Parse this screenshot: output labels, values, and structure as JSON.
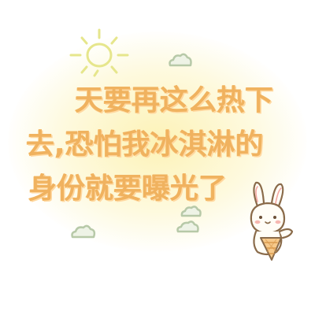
{
  "quote": {
    "line1": "天要再这么热下",
    "line2": "去,恐怕我冰淇淋的",
    "line3": "身份就要曝光了"
  },
  "colors": {
    "text": "#f0b25f",
    "text_shadow": "#ffd8a0",
    "sun": "#e6e68c",
    "cloud": "#b7c9a8",
    "glow": "#fcf0aa",
    "bunny_outline": "#8a6b4a",
    "bunny_cheek": "#f4a6a0",
    "cone": "#f6c98a"
  },
  "decorations": {
    "sun_icon": "sun-icon",
    "cloud_icons": [
      "cloud-icon",
      "cloud-icon",
      "cloud-icon",
      "cloud-icon"
    ],
    "character": "bunny-with-icecream-icon"
  }
}
